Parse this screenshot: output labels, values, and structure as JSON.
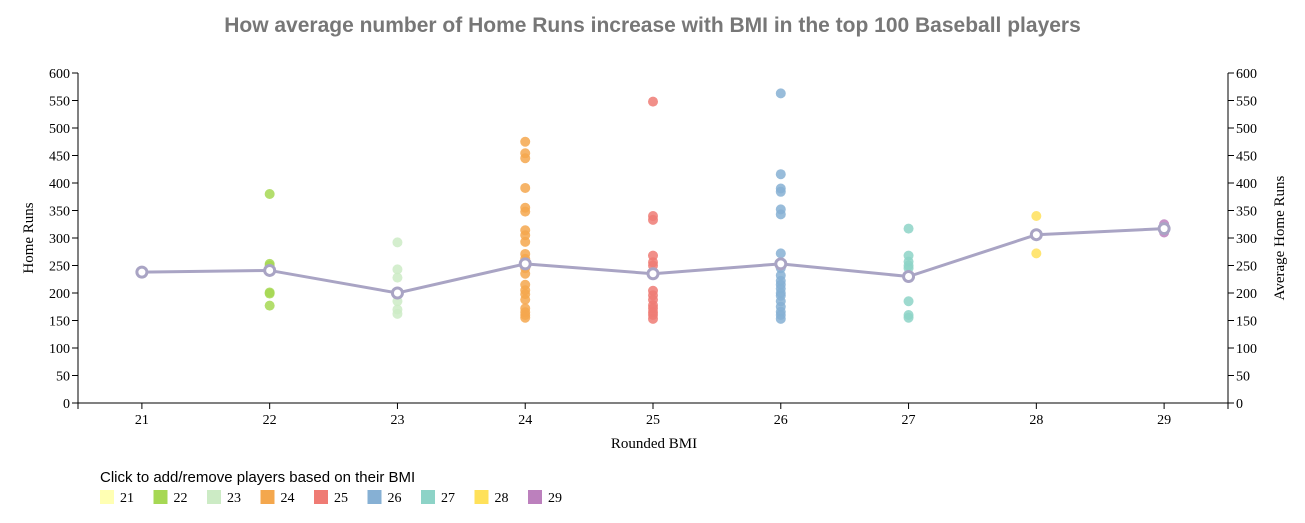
{
  "chart_data": {
    "type": "scatter",
    "title": "How average number of Home Runs increase with BMI in the top 100 Baseball players",
    "xlabel": "Rounded BMI",
    "ylabel": "Home Runs",
    "y2label": "Average Home Runs",
    "xlim": [
      20.5,
      29.5
    ],
    "ylim": [
      0,
      600
    ],
    "y2lim": [
      0,
      600
    ],
    "xticks": [
      21,
      22,
      23,
      24,
      25,
      26,
      27,
      28,
      29
    ],
    "yticks": [
      0,
      50,
      100,
      150,
      200,
      250,
      300,
      350,
      400,
      450,
      500,
      550,
      600
    ],
    "grid": false,
    "series": [
      {
        "name": "21",
        "color": "#ffffb3",
        "points": []
      },
      {
        "name": "22",
        "color": "#a6d854",
        "points": [
          [
            22,
            380
          ],
          [
            22,
            253
          ],
          [
            22,
            250
          ],
          [
            22,
            201
          ],
          [
            22,
            199
          ],
          [
            22,
            177
          ]
        ]
      },
      {
        "name": "23",
        "color": "#ccebc5",
        "points": [
          [
            23,
            292
          ],
          [
            23,
            243
          ],
          [
            23,
            228
          ],
          [
            23,
            200
          ],
          [
            23,
            185
          ],
          [
            23,
            170
          ],
          [
            23,
            162
          ]
        ]
      },
      {
        "name": "24",
        "color": "#f4a74d",
        "points": [
          [
            24,
            475
          ],
          [
            24,
            454
          ],
          [
            24,
            445
          ],
          [
            24,
            391
          ],
          [
            24,
            355
          ],
          [
            24,
            348
          ],
          [
            24,
            314
          ],
          [
            24,
            305
          ],
          [
            24,
            293
          ],
          [
            24,
            271
          ],
          [
            24,
            262
          ],
          [
            24,
            255
          ],
          [
            24,
            245
          ],
          [
            24,
            235
          ],
          [
            24,
            215
          ],
          [
            24,
            205
          ],
          [
            24,
            198
          ],
          [
            24,
            188
          ],
          [
            24,
            172
          ],
          [
            24,
            165
          ],
          [
            24,
            160
          ],
          [
            24,
            155
          ]
        ]
      },
      {
        "name": "25",
        "color": "#ef7b74",
        "points": [
          [
            25,
            548
          ],
          [
            25,
            340
          ],
          [
            25,
            333
          ],
          [
            25,
            268
          ],
          [
            25,
            256
          ],
          [
            25,
            250
          ],
          [
            25,
            204
          ],
          [
            25,
            196
          ],
          [
            25,
            188
          ],
          [
            25,
            178
          ],
          [
            25,
            172
          ],
          [
            25,
            165
          ],
          [
            25,
            160
          ],
          [
            25,
            153
          ]
        ]
      },
      {
        "name": "26",
        "color": "#86b0d4",
        "points": [
          [
            26,
            563
          ],
          [
            26,
            416
          ],
          [
            26,
            390
          ],
          [
            26,
            384
          ],
          [
            26,
            352
          ],
          [
            26,
            343
          ],
          [
            26,
            272
          ],
          [
            26,
            255
          ],
          [
            26,
            245
          ],
          [
            26,
            232
          ],
          [
            26,
            222
          ],
          [
            26,
            215
          ],
          [
            26,
            208
          ],
          [
            26,
            200
          ],
          [
            26,
            195
          ],
          [
            26,
            185
          ],
          [
            26,
            175
          ],
          [
            26,
            166
          ],
          [
            26,
            160
          ],
          [
            26,
            153
          ]
        ]
      },
      {
        "name": "27",
        "color": "#8dd3c7",
        "points": [
          [
            27,
            317
          ],
          [
            27,
            268
          ],
          [
            27,
            257
          ],
          [
            27,
            250
          ],
          [
            27,
            245
          ],
          [
            27,
            185
          ],
          [
            27,
            160
          ],
          [
            27,
            155
          ]
        ]
      },
      {
        "name": "28",
        "color": "#ffe15a",
        "points": [
          [
            28,
            340
          ],
          [
            28,
            272
          ]
        ]
      },
      {
        "name": "29",
        "color": "#bc80bd",
        "points": [
          [
            29,
            325
          ],
          [
            29,
            318
          ],
          [
            29,
            310
          ]
        ]
      }
    ],
    "average_line": {
      "name": "Average Home Runs",
      "color": "#a9a4c4",
      "x": [
        21,
        22,
        23,
        24,
        25,
        26,
        27,
        28,
        29
      ],
      "y": [
        238,
        241,
        200,
        253,
        235,
        253,
        230,
        306,
        317
      ]
    }
  },
  "legend": {
    "prompt": "Click to add/remove players based on their BMI",
    "items": [
      {
        "label": "21",
        "color": "#ffffb3"
      },
      {
        "label": "22",
        "color": "#a6d854"
      },
      {
        "label": "23",
        "color": "#ccebc5"
      },
      {
        "label": "24",
        "color": "#f4a74d"
      },
      {
        "label": "25",
        "color": "#ef7b74"
      },
      {
        "label": "26",
        "color": "#86b0d4"
      },
      {
        "label": "27",
        "color": "#8dd3c7"
      },
      {
        "label": "28",
        "color": "#ffe15a"
      },
      {
        "label": "29",
        "color": "#bc80bd"
      }
    ]
  }
}
